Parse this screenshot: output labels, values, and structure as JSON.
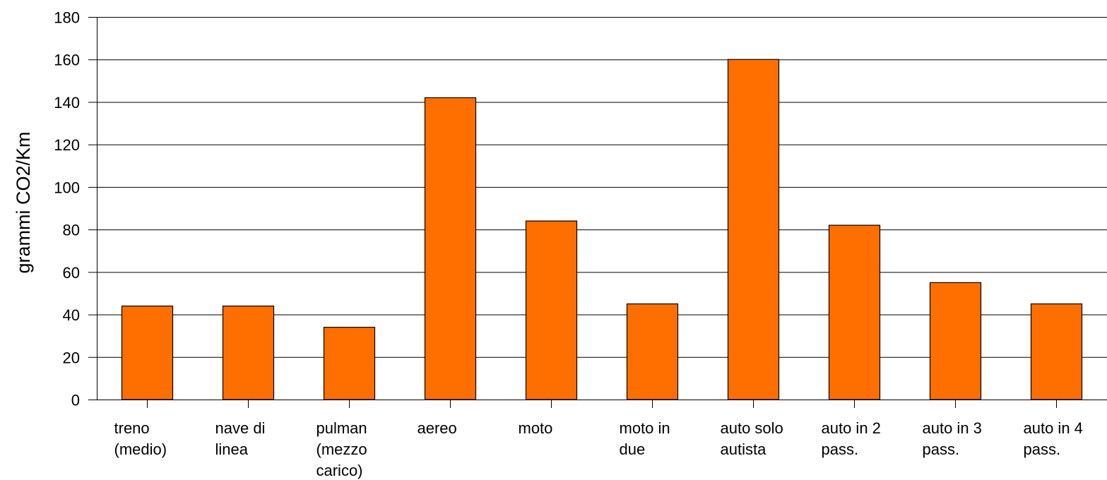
{
  "chart_data": {
    "type": "bar",
    "title": "",
    "xlabel": "",
    "ylabel": "grammi CO2/Km",
    "ylim": [
      0,
      180
    ],
    "yticks": [
      0,
      20,
      40,
      60,
      80,
      100,
      120,
      140,
      160,
      180
    ],
    "grid": true,
    "bar_color": "#ff6f00",
    "categories": [
      [
        "treno",
        "(medio)"
      ],
      [
        "nave di",
        "linea"
      ],
      [
        "pulman",
        "(mezzo",
        "carico)"
      ],
      [
        "aereo"
      ],
      [
        "moto"
      ],
      [
        "moto in",
        "due"
      ],
      [
        "auto solo",
        "autista"
      ],
      [
        "auto in 2",
        "pass."
      ],
      [
        "auto in 3",
        "pass."
      ],
      [
        "auto in 4",
        "pass."
      ]
    ],
    "values": [
      44,
      44,
      34,
      142,
      84,
      45,
      160,
      82,
      55,
      45
    ]
  }
}
